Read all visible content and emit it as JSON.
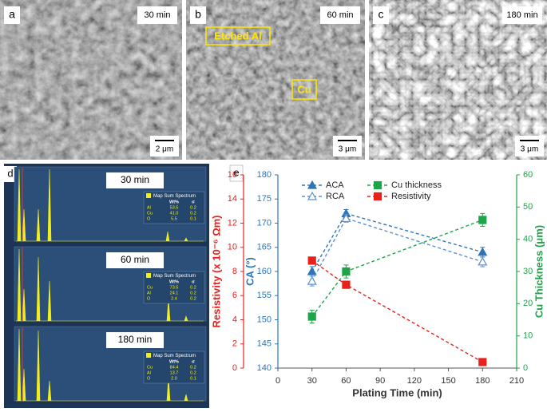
{
  "panels": [
    {
      "label": "a",
      "time": "30 min",
      "scale": "2 μm"
    },
    {
      "label": "b",
      "time": "60 min",
      "scale": "3 μm",
      "annotations": [
        "Etched Al",
        "Cu"
      ]
    },
    {
      "label": "c",
      "time": "180 min",
      "scale": "3 μm"
    }
  ],
  "eds": {
    "label": "d",
    "title": "Map Sum Spectrum",
    "header": [
      "Wt%",
      "σ"
    ],
    "spectra": [
      {
        "time": "30 min",
        "rows": [
          [
            "Al",
            "53.5",
            "0.2"
          ],
          [
            "Cu",
            "41.0",
            "0.2"
          ],
          [
            "O",
            "5.5",
            "0.1"
          ]
        ]
      },
      {
        "time": "60 min",
        "rows": [
          [
            "Cu",
            "73.5",
            "0.2"
          ],
          [
            "Al",
            "24.1",
            "0.2"
          ],
          [
            "O",
            "2.4",
            "0.2"
          ]
        ]
      },
      {
        "time": "180 min",
        "rows": [
          [
            "Cu",
            "84.4",
            "0.2"
          ],
          [
            "Al",
            "13.7",
            "0.2"
          ],
          [
            "O",
            "2.0",
            "0.1"
          ]
        ]
      }
    ]
  },
  "chart_data": {
    "type": "line",
    "label": "e",
    "xlabel": "Plating Time (min)",
    "ylabel": "Resistivity (x 10⁻⁶ Ωm)",
    "y2label": "CA (°)",
    "y3label": "Cu Thickness (μm)",
    "x": [
      30,
      60,
      180
    ],
    "xlim": [
      0,
      210
    ],
    "xticks": [
      0,
      30,
      60,
      90,
      120,
      150,
      180,
      210
    ],
    "ylim": [
      0,
      16
    ],
    "yticks": [
      0,
      2,
      4,
      6,
      8,
      10,
      12,
      14,
      16
    ],
    "ycolor": "#e8211d",
    "y2lim": [
      140,
      180
    ],
    "y2ticks": [
      140,
      145,
      150,
      155,
      160,
      165,
      170,
      175,
      180
    ],
    "y2color": "#2e75b6",
    "y3lim": [
      0,
      60
    ],
    "y3ticks": [
      0,
      10,
      20,
      30,
      40,
      50,
      60
    ],
    "y3color": "#1fa548",
    "series": [
      {
        "name": "ACA",
        "color": "#2e75b6",
        "marker": "triangle",
        "filled": true,
        "axis": "y2",
        "values": [
          160,
          172,
          164
        ],
        "errors": [
          1,
          0.8,
          1
        ]
      },
      {
        "name": "RCA",
        "color": "#5b8fd0",
        "marker": "triangle",
        "filled": false,
        "axis": "y2",
        "values": [
          158,
          171,
          162
        ],
        "errors": [
          1,
          0.8,
          1
        ]
      },
      {
        "name": "Cu thickness",
        "color": "#1fa548",
        "marker": "square",
        "filled": true,
        "axis": "y3",
        "values": [
          16,
          30,
          46
        ],
        "errors": [
          2,
          2,
          2
        ]
      },
      {
        "name": "Resistivity",
        "color": "#e8211d",
        "marker": "square",
        "filled": true,
        "axis": "y",
        "values": [
          8.9,
          6.9,
          0.5
        ],
        "errors": [
          0,
          0,
          0
        ]
      }
    ]
  }
}
